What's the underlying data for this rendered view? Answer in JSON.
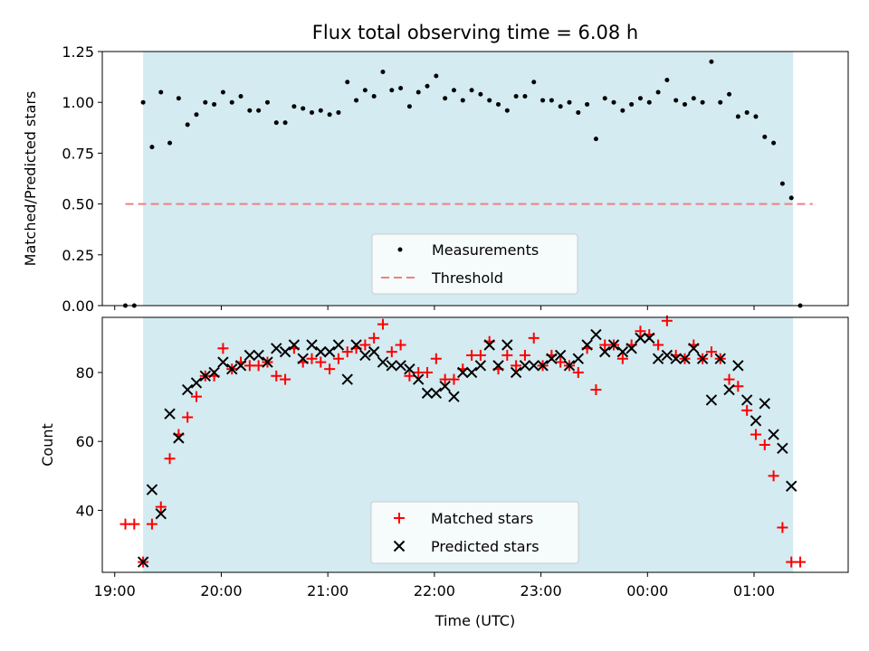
{
  "title": "Flux total observing time = 6.08 h",
  "colors": {
    "shade": "#d3ebf1",
    "threshold": "#f08080",
    "measurement": "#000000",
    "matched": "#ff0000",
    "predicted": "#000000"
  },
  "chart_data": [
    {
      "type": "scatter",
      "ylabel": "Matched/Predicted stars",
      "ylim": [
        0,
        1.25
      ],
      "yticks": [
        "0.00",
        "0.25",
        "0.50",
        "0.75",
        "1.00",
        "1.25"
      ],
      "xlim": [
        "18:53",
        "01:53"
      ],
      "shaded_span": [
        "19:16",
        "01:22"
      ],
      "legend_position": "lower-center",
      "threshold": {
        "name": "Threshold",
        "value": 0.5,
        "x_range": [
          "19:06",
          "01:33"
        ]
      },
      "series": [
        {
          "name": "Measurements",
          "points": [
            [
              "19:06",
              0.0
            ],
            [
              "19:11",
              0.0
            ],
            [
              "19:16",
              1.0
            ],
            [
              "19:21",
              0.78
            ],
            [
              "19:26",
              1.05
            ],
            [
              "19:31",
              0.8
            ],
            [
              "19:36",
              1.02
            ],
            [
              "19:41",
              0.89
            ],
            [
              "19:46",
              0.94
            ],
            [
              "19:51",
              1.0
            ],
            [
              "19:56",
              0.99
            ],
            [
              "20:01",
              1.05
            ],
            [
              "20:06",
              1.0
            ],
            [
              "20:11",
              1.03
            ],
            [
              "20:16",
              0.96
            ],
            [
              "20:21",
              0.96
            ],
            [
              "20:26",
              1.0
            ],
            [
              "20:31",
              0.9
            ],
            [
              "20:36",
              0.9
            ],
            [
              "20:41",
              0.98
            ],
            [
              "20:46",
              0.97
            ],
            [
              "20:51",
              0.95
            ],
            [
              "20:56",
              0.96
            ],
            [
              "21:01",
              0.94
            ],
            [
              "21:06",
              0.95
            ],
            [
              "21:11",
              1.1
            ],
            [
              "21:16",
              1.01
            ],
            [
              "21:21",
              1.06
            ],
            [
              "21:26",
              1.03
            ],
            [
              "21:31",
              1.15
            ],
            [
              "21:36",
              1.06
            ],
            [
              "21:41",
              1.07
            ],
            [
              "21:46",
              0.98
            ],
            [
              "21:51",
              1.05
            ],
            [
              "21:56",
              1.08
            ],
            [
              "22:01",
              1.13
            ],
            [
              "22:06",
              1.02
            ],
            [
              "22:11",
              1.06
            ],
            [
              "22:16",
              1.01
            ],
            [
              "22:21",
              1.06
            ],
            [
              "22:26",
              1.04
            ],
            [
              "22:31",
              1.01
            ],
            [
              "22:36",
              0.99
            ],
            [
              "22:41",
              0.96
            ],
            [
              "22:46",
              1.03
            ],
            [
              "22:51",
              1.03
            ],
            [
              "22:56",
              1.1
            ],
            [
              "23:01",
              1.01
            ],
            [
              "23:06",
              1.01
            ],
            [
              "23:11",
              0.98
            ],
            [
              "23:16",
              1.0
            ],
            [
              "23:21",
              0.95
            ],
            [
              "23:26",
              0.99
            ],
            [
              "23:31",
              0.82
            ],
            [
              "23:36",
              1.02
            ],
            [
              "23:41",
              1.0
            ],
            [
              "23:46",
              0.96
            ],
            [
              "23:51",
              0.99
            ],
            [
              "23:56",
              1.02
            ],
            [
              "00:01",
              1.0
            ],
            [
              "00:06",
              1.05
            ],
            [
              "00:11",
              1.11
            ],
            [
              "00:16",
              1.01
            ],
            [
              "00:21",
              0.99
            ],
            [
              "00:26",
              1.02
            ],
            [
              "00:31",
              1.0
            ],
            [
              "00:36",
              1.2
            ],
            [
              "00:41",
              1.0
            ],
            [
              "00:46",
              1.04
            ],
            [
              "00:51",
              0.93
            ],
            [
              "00:56",
              0.95
            ],
            [
              "01:01",
              0.93
            ],
            [
              "01:06",
              0.83
            ],
            [
              "01:11",
              0.8
            ],
            [
              "01:16",
              0.6
            ],
            [
              "01:21",
              0.53
            ],
            [
              "01:26",
              0.0
            ]
          ]
        }
      ]
    },
    {
      "type": "scatter",
      "xlabel": "Time (UTC)",
      "ylabel": "Count",
      "ylim": [
        22,
        96
      ],
      "yticks": [
        "40",
        "60",
        "80"
      ],
      "xlim": [
        "18:53",
        "01:53"
      ],
      "xticks": [
        "19:00",
        "20:00",
        "21:00",
        "22:00",
        "23:00",
        "00:00",
        "01:00"
      ],
      "shaded_span": [
        "19:16",
        "01:22"
      ],
      "legend_position": "lower-center",
      "series": [
        {
          "name": "Matched stars",
          "marker": "plus",
          "points": [
            [
              "19:06",
              36
            ],
            [
              "19:11",
              36
            ],
            [
              "19:16",
              25
            ],
            [
              "19:21",
              36
            ],
            [
              "19:26",
              41
            ],
            [
              "19:31",
              55
            ],
            [
              "19:36",
              62
            ],
            [
              "19:41",
              67
            ],
            [
              "19:46",
              73
            ],
            [
              "19:51",
              79
            ],
            [
              "19:56",
              79
            ],
            [
              "20:01",
              87
            ],
            [
              "20:06",
              81
            ],
            [
              "20:11",
              83
            ],
            [
              "20:16",
              82
            ],
            [
              "20:21",
              82
            ],
            [
              "20:26",
              83
            ],
            [
              "20:31",
              79
            ],
            [
              "20:36",
              78
            ],
            [
              "20:41",
              87
            ],
            [
              "20:46",
              83
            ],
            [
              "20:51",
              84
            ],
            [
              "20:56",
              83
            ],
            [
              "21:01",
              81
            ],
            [
              "21:06",
              84
            ],
            [
              "21:11",
              86
            ],
            [
              "21:16",
              87
            ],
            [
              "21:21",
              88
            ],
            [
              "21:26",
              90
            ],
            [
              "21:31",
              94
            ],
            [
              "21:36",
              86
            ],
            [
              "21:41",
              88
            ],
            [
              "21:46",
              79
            ],
            [
              "21:51",
              80
            ],
            [
              "21:56",
              80
            ],
            [
              "22:01",
              84
            ],
            [
              "22:06",
              78
            ],
            [
              "22:11",
              78
            ],
            [
              "22:16",
              81
            ],
            [
              "22:21",
              85
            ],
            [
              "22:26",
              85
            ],
            [
              "22:31",
              89
            ],
            [
              "22:36",
              81
            ],
            [
              "22:41",
              85
            ],
            [
              "22:46",
              82
            ],
            [
              "22:51",
              85
            ],
            [
              "22:56",
              90
            ],
            [
              "23:01",
              82
            ],
            [
              "23:06",
              85
            ],
            [
              "23:11",
              83
            ],
            [
              "23:16",
              82
            ],
            [
              "23:21",
              80
            ],
            [
              "23:26",
              87
            ],
            [
              "23:31",
              75
            ],
            [
              "23:36",
              88
            ],
            [
              "23:41",
              88
            ],
            [
              "23:46",
              84
            ],
            [
              "23:51",
              88
            ],
            [
              "23:56",
              92
            ],
            [
              "00:01",
              91
            ],
            [
              "00:06",
              88
            ],
            [
              "00:11",
              95
            ],
            [
              "00:16",
              85
            ],
            [
              "00:21",
              84
            ],
            [
              "00:26",
              88
            ],
            [
              "00:31",
              84
            ],
            [
              "00:36",
              86
            ],
            [
              "00:41",
              84
            ],
            [
              "00:46",
              78
            ],
            [
              "00:51",
              76
            ],
            [
              "00:56",
              69
            ],
            [
              "01:01",
              62
            ],
            [
              "01:06",
              59
            ],
            [
              "01:11",
              50
            ],
            [
              "01:16",
              35
            ],
            [
              "01:21",
              25
            ],
            [
              "01:26",
              25
            ]
          ]
        },
        {
          "name": "Predicted stars",
          "marker": "x",
          "points": [
            [
              "19:16",
              25
            ],
            [
              "19:21",
              46
            ],
            [
              "19:26",
              39
            ],
            [
              "19:31",
              68
            ],
            [
              "19:36",
              61
            ],
            [
              "19:41",
              75
            ],
            [
              "19:46",
              77
            ],
            [
              "19:51",
              79
            ],
            [
              "19:56",
              80
            ],
            [
              "20:01",
              83
            ],
            [
              "20:06",
              81
            ],
            [
              "20:11",
              82
            ],
            [
              "20:16",
              85
            ],
            [
              "20:21",
              85
            ],
            [
              "20:26",
              83
            ],
            [
              "20:31",
              87
            ],
            [
              "20:36",
              86
            ],
            [
              "20:41",
              88
            ],
            [
              "20:46",
              84
            ],
            [
              "20:51",
              88
            ],
            [
              "20:56",
              86
            ],
            [
              "21:01",
              86
            ],
            [
              "21:06",
              88
            ],
            [
              "21:11",
              78
            ],
            [
              "21:16",
              88
            ],
            [
              "21:21",
              85
            ],
            [
              "21:26",
              86
            ],
            [
              "21:31",
              83
            ],
            [
              "21:36",
              82
            ],
            [
              "21:41",
              82
            ],
            [
              "21:46",
              81
            ],
            [
              "21:51",
              78
            ],
            [
              "21:56",
              74
            ],
            [
              "22:01",
              74
            ],
            [
              "22:06",
              76
            ],
            [
              "22:11",
              73
            ],
            [
              "22:16",
              80
            ],
            [
              "22:21",
              80
            ],
            [
              "22:26",
              82
            ],
            [
              "22:31",
              88
            ],
            [
              "22:36",
              82
            ],
            [
              "22:41",
              88
            ],
            [
              "22:46",
              80
            ],
            [
              "22:51",
              82
            ],
            [
              "22:56",
              82
            ],
            [
              "23:01",
              82
            ],
            [
              "23:06",
              84
            ],
            [
              "23:11",
              85
            ],
            [
              "23:16",
              82
            ],
            [
              "23:21",
              84
            ],
            [
              "23:26",
              88
            ],
            [
              "23:31",
              91
            ],
            [
              "23:36",
              86
            ],
            [
              "23:41",
              88
            ],
            [
              "23:46",
              86
            ],
            [
              "23:51",
              87
            ],
            [
              "23:56",
              90
            ],
            [
              "00:01",
              90
            ],
            [
              "00:06",
              84
            ],
            [
              "00:11",
              85
            ],
            [
              "00:16",
              84
            ],
            [
              "00:21",
              84
            ],
            [
              "00:26",
              87
            ],
            [
              "00:31",
              84
            ],
            [
              "00:36",
              72
            ],
            [
              "00:41",
              84
            ],
            [
              "00:46",
              75
            ],
            [
              "00:51",
              82
            ],
            [
              "00:56",
              72
            ],
            [
              "01:01",
              66
            ],
            [
              "01:06",
              71
            ],
            [
              "01:11",
              62
            ],
            [
              "01:16",
              58
            ],
            [
              "01:21",
              47
            ]
          ]
        }
      ]
    }
  ]
}
